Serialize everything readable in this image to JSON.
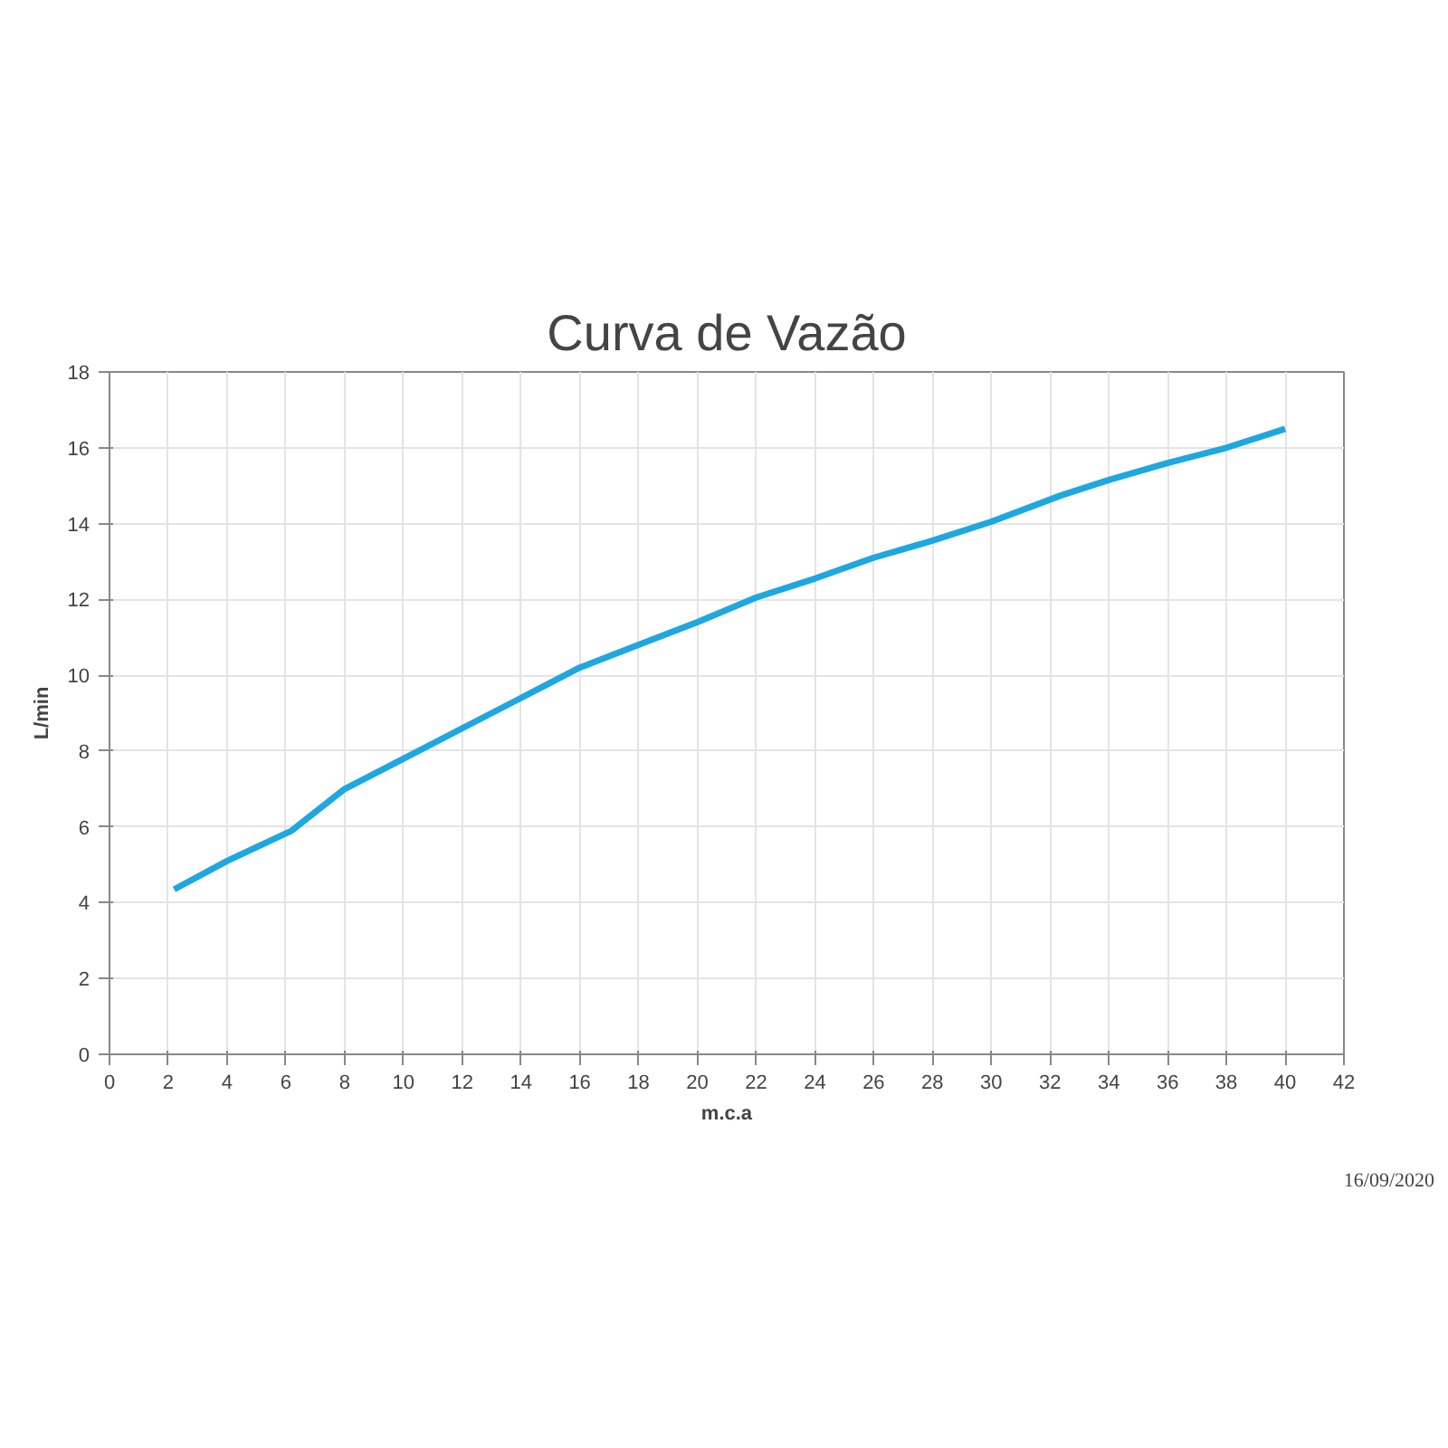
{
  "chart_data": {
    "type": "line",
    "title": "Curva de Vazão",
    "xlabel": "m.c.a",
    "ylabel": "L/min",
    "annotations": [
      "16/09/2020"
    ],
    "series": [
      {
        "color": "#1ea7e1",
        "x": [
          2.2,
          4,
          6.2,
          8,
          10,
          12,
          14,
          16,
          18,
          20,
          22,
          24,
          26,
          28,
          30,
          32.4,
          34,
          36,
          38,
          40
        ],
        "values": [
          4.35,
          5.1,
          5.9,
          7.0,
          7.8,
          8.6,
          9.4,
          10.2,
          10.8,
          11.4,
          12.05,
          12.55,
          13.1,
          13.55,
          14.05,
          14.75,
          15.15,
          15.6,
          16.0,
          16.5
        ]
      }
    ],
    "xlim": [
      0,
      42
    ],
    "ylim": [
      0,
      18
    ],
    "xticks": [
      0,
      2,
      4,
      6,
      8,
      10,
      12,
      14,
      16,
      18,
      20,
      22,
      24,
      26,
      28,
      30,
      32,
      34,
      36,
      38,
      40,
      42
    ],
    "yticks": [
      0,
      2,
      4,
      6,
      8,
      10,
      12,
      14,
      16,
      18
    ],
    "grid": true,
    "marker": "none",
    "line_style": "solid"
  }
}
